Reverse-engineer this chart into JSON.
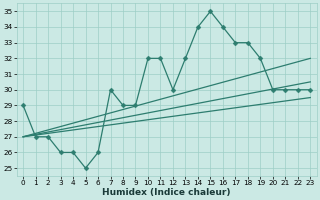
{
  "title": "",
  "xlabel": "Humidex (Indice chaleur)",
  "x_values": [
    0,
    1,
    2,
    3,
    4,
    5,
    6,
    7,
    8,
    9,
    10,
    11,
    12,
    13,
    14,
    15,
    16,
    17,
    18,
    19,
    20,
    21,
    22,
    23
  ],
  "main_line": [
    29,
    27,
    27,
    26,
    26,
    25,
    26,
    30,
    29,
    29,
    32,
    32,
    30,
    32,
    34,
    35,
    34,
    33,
    33,
    32,
    30,
    30,
    30,
    30
  ],
  "trend_lines": [
    [
      [
        0,
        27
      ],
      [
        23,
        32
      ]
    ],
    [
      [
        0,
        27
      ],
      [
        23,
        30.5
      ]
    ],
    [
      [
        0,
        27
      ],
      [
        23,
        29.5
      ]
    ]
  ],
  "ylim_min": 24.5,
  "ylim_max": 35.5,
  "yticks": [
    25,
    26,
    27,
    28,
    29,
    30,
    31,
    32,
    33,
    34,
    35
  ],
  "line_color": "#2D7D6F",
  "bg_color": "#CBE9E4",
  "grid_color": "#9ECEC6",
  "marker_size": 2.5,
  "linewidth": 0.9,
  "trend_linewidth": 0.9,
  "xlabel_fontsize": 6.5,
  "tick_fontsize": 5.2
}
